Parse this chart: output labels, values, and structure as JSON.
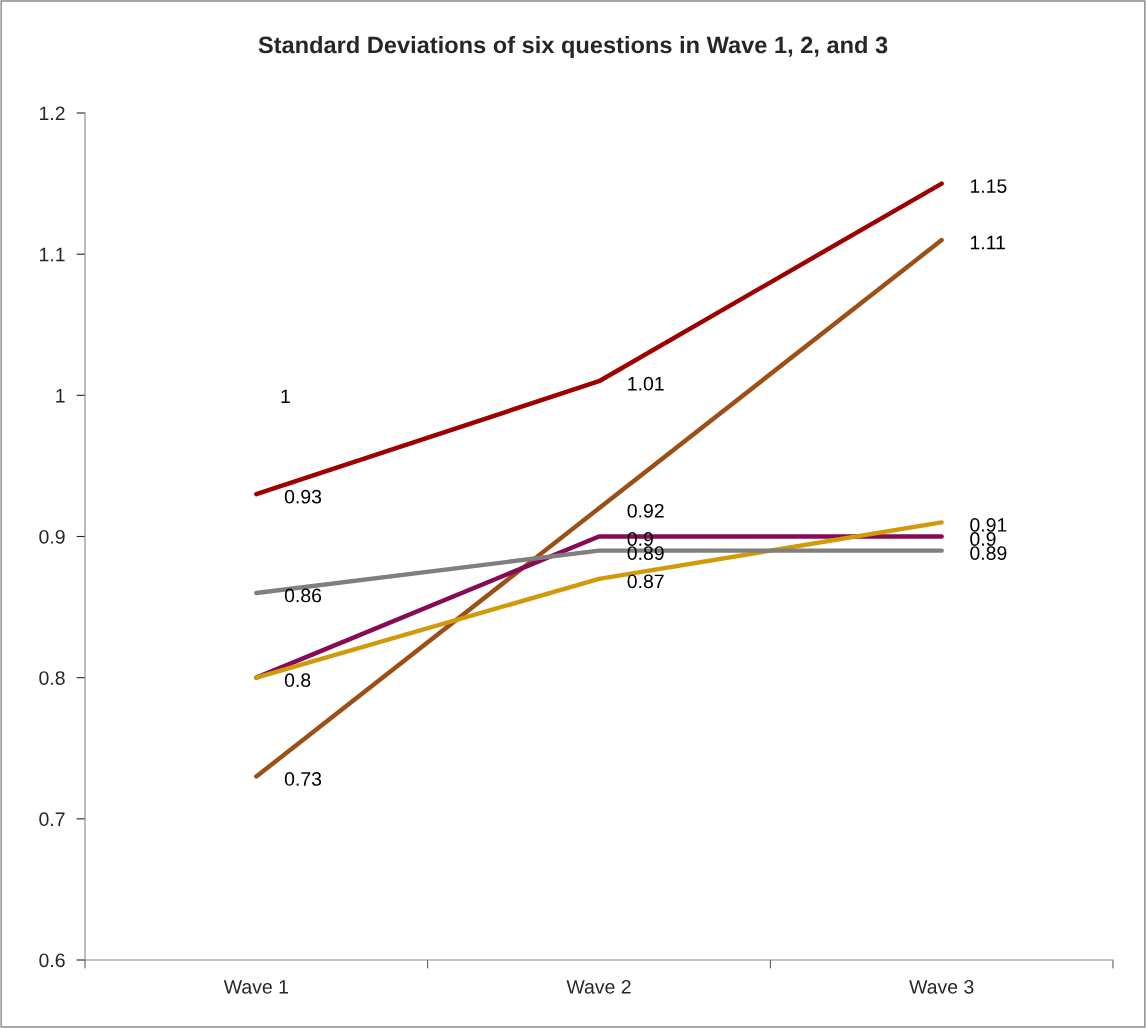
{
  "chart_data": {
    "type": "line",
    "title": "Standard Deviations of six questions in Wave 1, 2, and 3",
    "categories": [
      "Wave 1",
      "Wave 2",
      "Wave 3"
    ],
    "series": [
      {
        "color": "#9e0000",
        "values": [
          0.93,
          1.01,
          1.15
        ]
      },
      {
        "color": "#9c4f16",
        "values": [
          0.73,
          0.92,
          1.11
        ]
      },
      {
        "color": "#870a55",
        "values": [
          0.8,
          0.9,
          0.9
        ]
      },
      {
        "color": "#d09a0a",
        "values": [
          0.8,
          0.87,
          0.91
        ],
        "value_labels": [
          null,
          "0.87",
          "0.91"
        ]
      },
      {
        "color": "#7f7f7f",
        "values": [
          0.86,
          0.89,
          0.89
        ]
      }
    ],
    "annotations": [
      "1"
    ],
    "ylim": [
      0.6,
      1.2
    ],
    "yticks": [
      0.6,
      0.7,
      0.8,
      0.9,
      1,
      1.1,
      1.2
    ],
    "data_labels": true,
    "grid": false,
    "legend": false,
    "marker": "none",
    "line_style": "solid"
  }
}
